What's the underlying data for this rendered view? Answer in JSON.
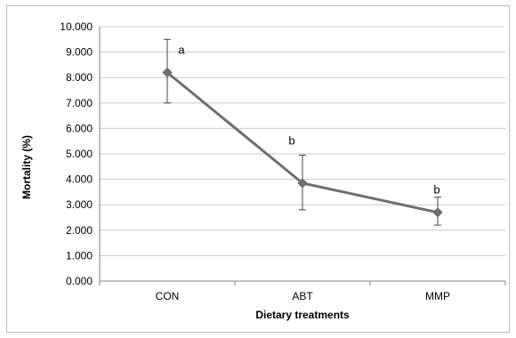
{
  "chart_data": {
    "type": "line",
    "title": "",
    "xlabel": "Dietary treatments",
    "ylabel": "Mortality  (%)",
    "ylim": [
      0,
      10
    ],
    "y_ticks": [
      "0.000",
      "1.000",
      "2.000",
      "3.000",
      "4.000",
      "5.000",
      "6.000",
      "7.000",
      "8.000",
      "9.000",
      "10.000"
    ],
    "categories": [
      "CON",
      "ABT",
      "MMP"
    ],
    "grid": "horizontal",
    "series": [
      {
        "values": [
          8.2,
          3.85,
          2.7
        ],
        "error_low": [
          7.0,
          2.8,
          2.2
        ],
        "error_high": [
          9.5,
          4.95,
          3.3
        ],
        "annotations": [
          "a",
          "b",
          "b"
        ],
        "color": "#6e6e6e"
      }
    ]
  }
}
